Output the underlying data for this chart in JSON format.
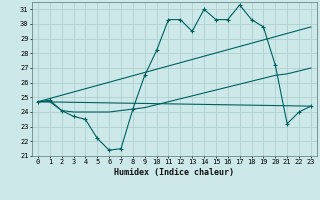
{
  "title": "",
  "xlabel": "Humidex (Indice chaleur)",
  "ylabel": "",
  "bg_color": "#cce8e8",
  "line_color": "#006060",
  "grid_color": "#aacccc",
  "xlim": [
    -0.5,
    23.5
  ],
  "ylim": [
    21,
    31.5
  ],
  "xticks": [
    0,
    1,
    2,
    3,
    4,
    5,
    6,
    7,
    8,
    9,
    10,
    11,
    12,
    13,
    14,
    15,
    16,
    17,
    18,
    19,
    20,
    21,
    22,
    23
  ],
  "yticks": [
    21,
    22,
    23,
    24,
    25,
    26,
    27,
    28,
    29,
    30,
    31
  ],
  "line1_x": [
    0,
    1,
    2,
    3,
    4,
    5,
    6,
    7,
    8,
    9,
    10,
    11,
    12,
    13,
    14,
    15,
    16,
    17,
    18,
    19,
    20,
    21,
    22,
    23
  ],
  "line1_y": [
    24.7,
    24.8,
    24.1,
    23.7,
    23.5,
    22.2,
    21.4,
    21.5,
    24.2,
    26.5,
    28.2,
    30.3,
    30.3,
    29.5,
    31.0,
    30.3,
    30.3,
    31.3,
    30.3,
    29.8,
    27.2,
    23.2,
    24.0,
    24.4
  ],
  "line2_x": [
    0,
    1,
    2,
    3,
    4,
    5,
    6,
    7,
    8,
    9,
    10,
    11,
    12,
    13,
    14,
    15,
    16,
    17,
    18,
    19,
    20,
    21,
    22,
    23
  ],
  "line2_y": [
    24.7,
    24.7,
    24.1,
    24.0,
    24.0,
    24.0,
    24.0,
    24.1,
    24.2,
    24.3,
    24.5,
    24.7,
    24.9,
    25.1,
    25.3,
    25.5,
    25.7,
    25.9,
    26.1,
    26.3,
    26.5,
    26.6,
    26.8,
    27.0
  ],
  "line3_x": [
    0,
    23
  ],
  "line3_y": [
    24.7,
    29.8
  ],
  "line4_x": [
    0,
    23
  ],
  "line4_y": [
    24.7,
    24.4
  ],
  "marker": "+"
}
